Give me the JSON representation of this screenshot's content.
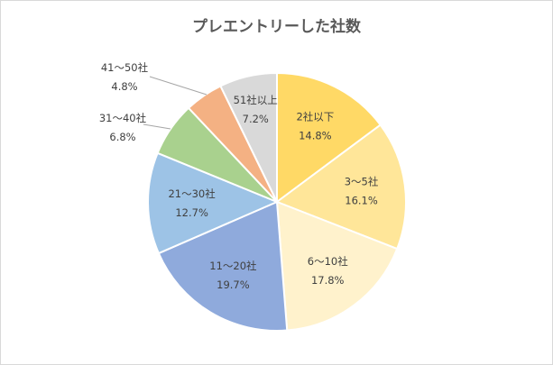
{
  "chart_data": {
    "type": "pie",
    "title": "プレエントリーした社数",
    "categories": [
      "2社以下",
      "3〜5社",
      "6〜10社",
      "11〜20社",
      "21〜30社",
      "31〜40社",
      "41〜50社",
      "51社以上"
    ],
    "values": [
      14.8,
      16.1,
      17.8,
      19.7,
      12.7,
      6.8,
      4.8,
      7.2
    ],
    "value_labels": [
      "14.8%",
      "16.1%",
      "17.8%",
      "19.7%",
      "12.7%",
      "6.8%",
      "4.8%",
      "7.2%"
    ],
    "colors": [
      "#FFD966",
      "#FFE699",
      "#FFF2CC",
      "#8FAADC",
      "#9DC3E6",
      "#A9D18E",
      "#F4B183",
      "#D9D9D9"
    ],
    "start": "top",
    "direction": "clockwise",
    "legend": "none"
  }
}
